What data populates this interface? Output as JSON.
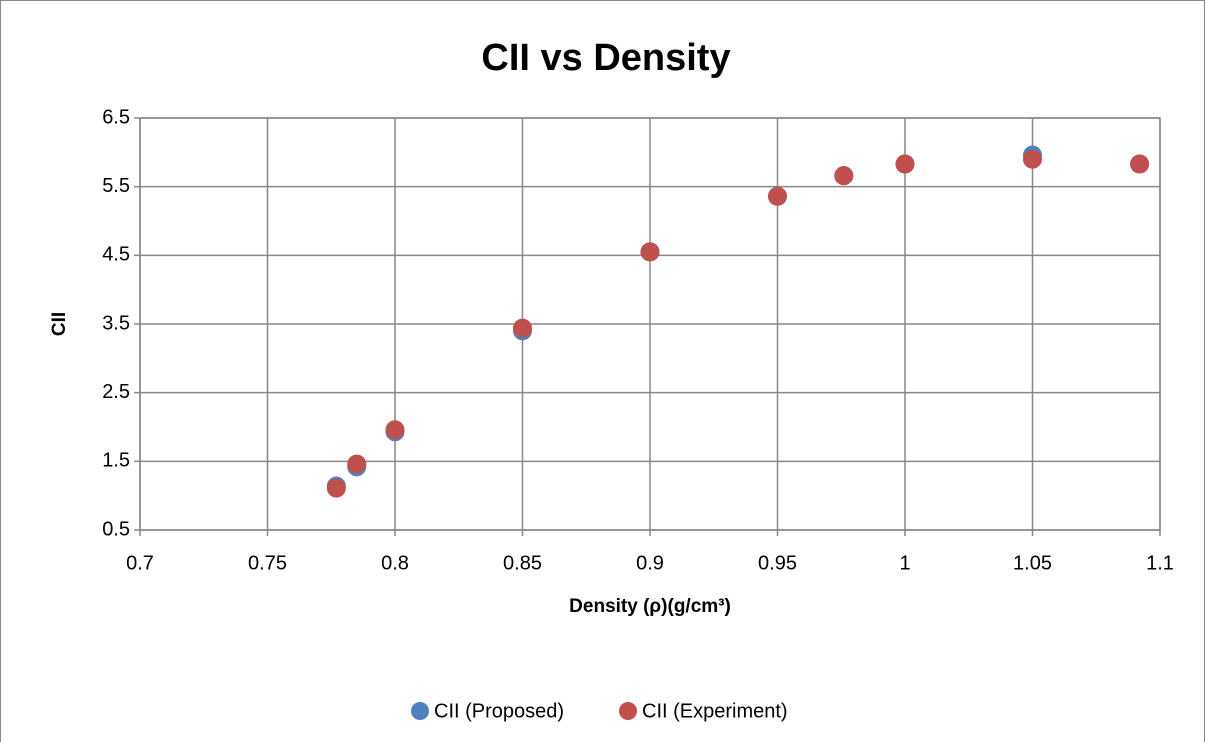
{
  "chart_data": {
    "type": "scatter",
    "title": "CII vs Density",
    "xlabel": "Density (ρ)(g/cm³)",
    "ylabel": "CII",
    "x": [
      0.777,
      0.785,
      0.8,
      0.85,
      0.9,
      0.95,
      0.976,
      1.0,
      1.05,
      1.092
    ],
    "series": [
      {
        "name": "CII (Proposed)",
        "color": "#4f81bd",
        "values": [
          1.14,
          1.42,
          1.93,
          3.4,
          4.55,
          5.36,
          5.66,
          5.83,
          5.96,
          5.83
        ]
      },
      {
        "name": "CII (Experiment)",
        "color": "#c0504d",
        "values": [
          1.11,
          1.46,
          1.96,
          3.44,
          4.55,
          5.36,
          5.66,
          5.83,
          5.9,
          5.83
        ]
      }
    ],
    "xlim": [
      0.7,
      1.1
    ],
    "xticks": [
      0.7,
      0.75,
      0.8,
      0.85,
      0.9,
      0.95,
      1,
      1.05,
      1.1
    ],
    "ylim": [
      0.5,
      6.5
    ],
    "yticks": [
      0.5,
      1.5,
      2.5,
      3.5,
      4.5,
      5.5,
      6.5
    ],
    "grid": true,
    "legend": "bottom"
  }
}
